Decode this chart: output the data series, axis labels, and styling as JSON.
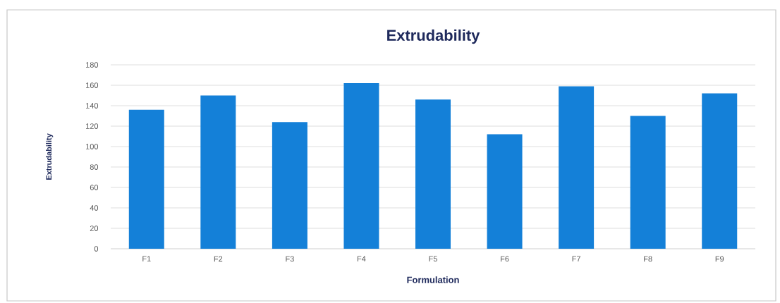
{
  "chart_data": {
    "type": "bar",
    "title": "Extrudability",
    "xlabel": "Formulation",
    "ylabel": "Extrudability",
    "categories": [
      "F1",
      "F2",
      "F3",
      "F4",
      "F5",
      "F6",
      "F7",
      "F8",
      "F9"
    ],
    "values": [
      136,
      150,
      124,
      162,
      146,
      112,
      159,
      130,
      152
    ],
    "color": "#1480d8",
    "ylim": [
      0,
      180
    ],
    "yticks": [
      0,
      20,
      40,
      60,
      80,
      100,
      120,
      140,
      160,
      180
    ],
    "grid": "y"
  }
}
